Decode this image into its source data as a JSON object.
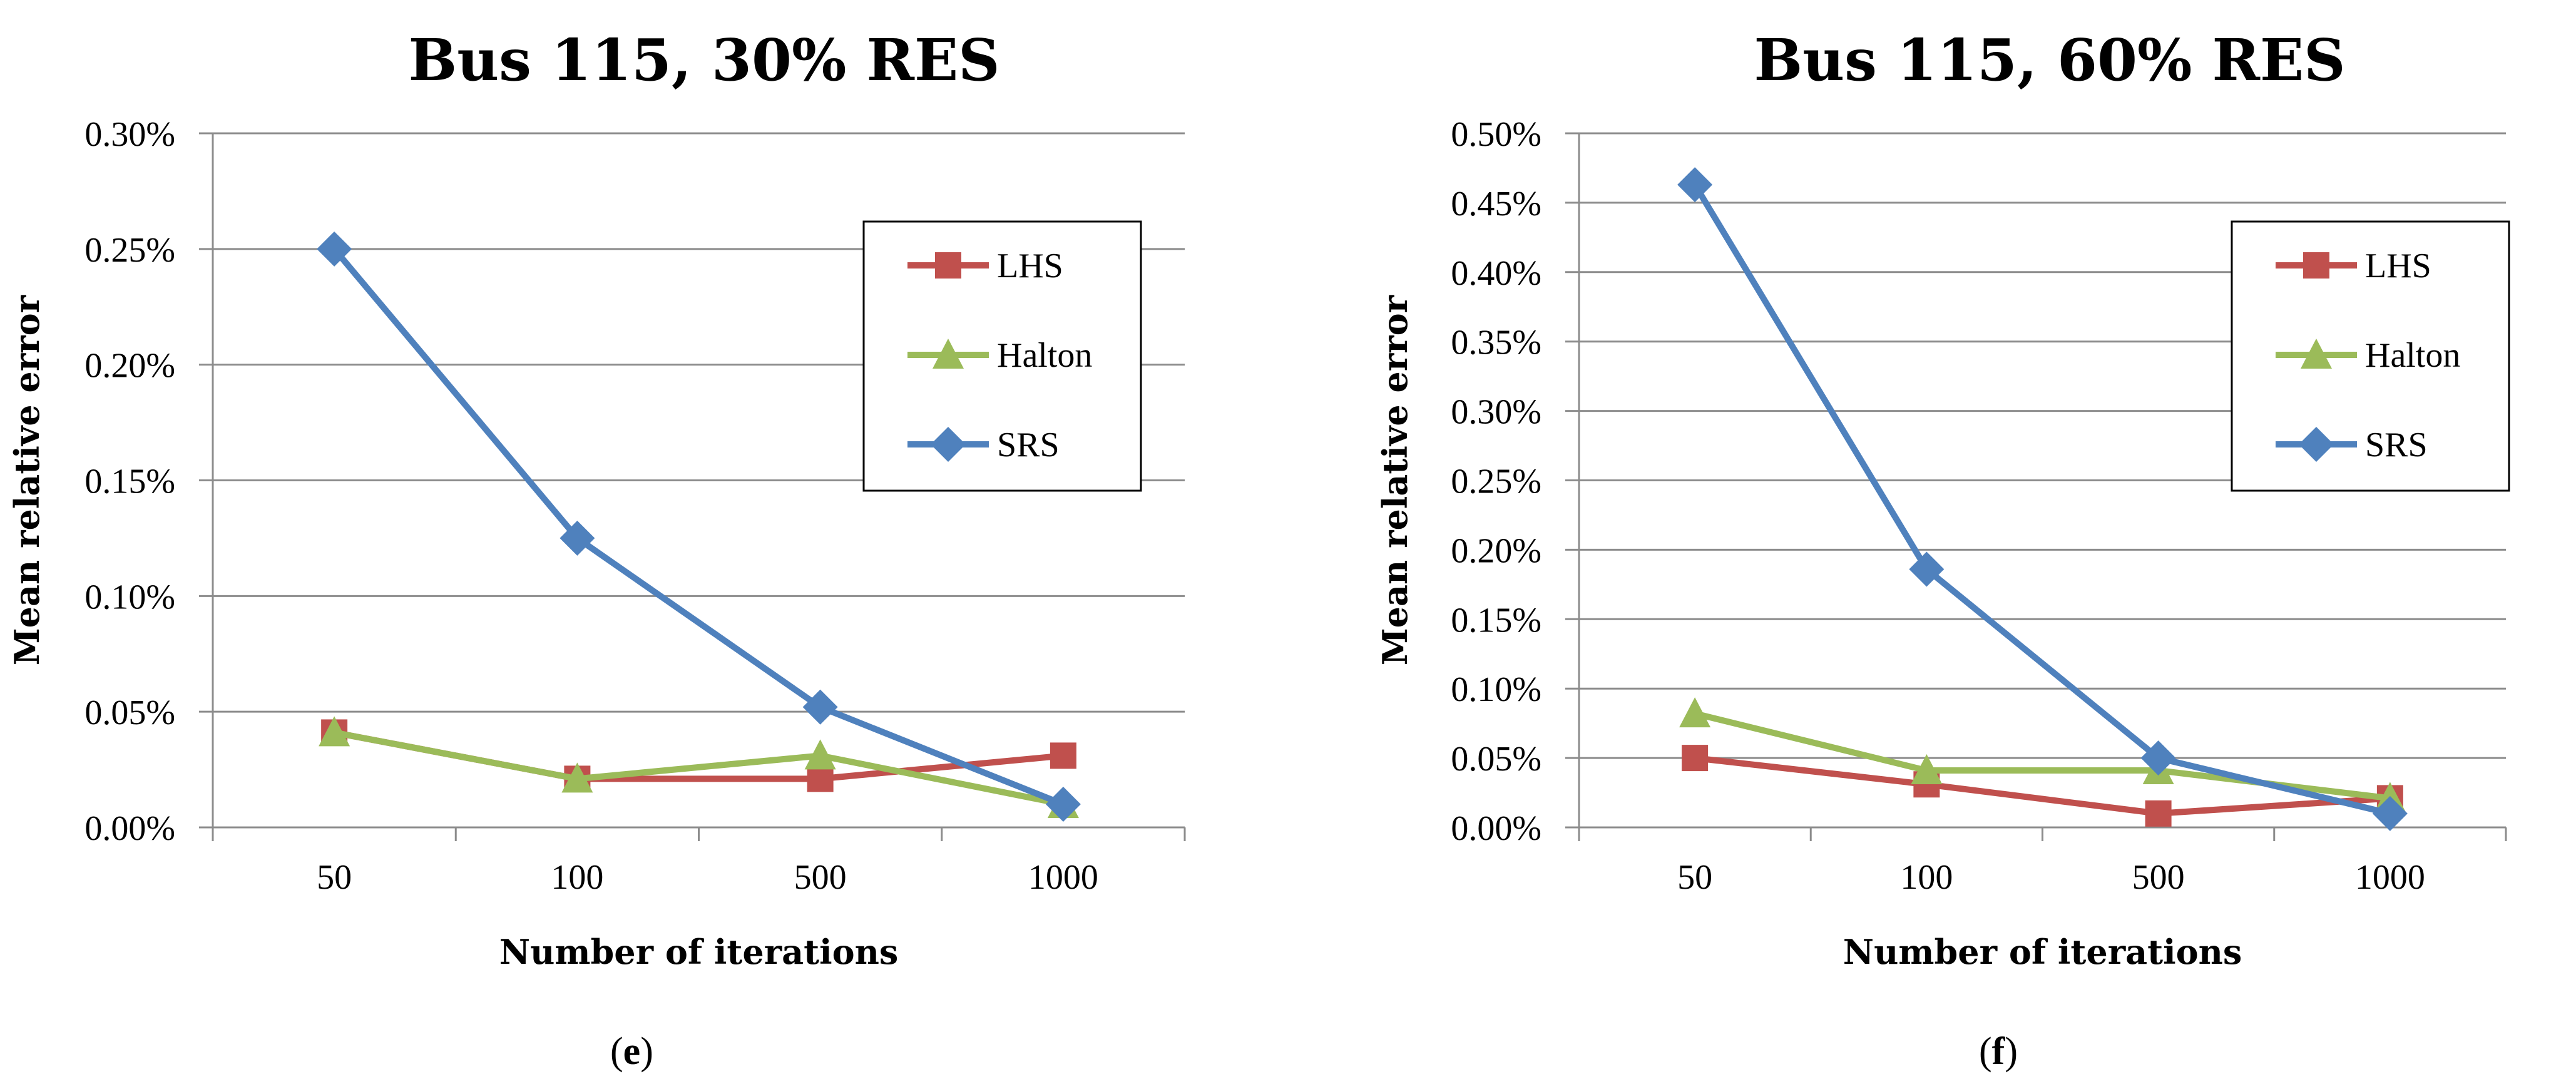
{
  "chart_data": [
    {
      "type": "line",
      "panel_label": "(e)",
      "panel_letter": "e",
      "title": "Bus 115, 30% RES",
      "xlabel": "Number of iterations",
      "ylabel": "Mean relative error",
      "categories": [
        "50",
        "100",
        "500",
        "1000"
      ],
      "ylim": [
        0,
        0.3
      ],
      "yticks": [
        0,
        0.05,
        0.1,
        0.15,
        0.2,
        0.25,
        0.3
      ],
      "ytick_labels": [
        "0.00%",
        "0.05%",
        "0.10%",
        "0.15%",
        "0.20%",
        "0.25%",
        "0.30%"
      ],
      "y_unit": "%",
      "grid": true,
      "legend_position": "top-right",
      "series": [
        {
          "name": "LHS",
          "color": "#c0504d",
          "marker": "square",
          "values": [
            0.041,
            0.021,
            0.021,
            0.031
          ]
        },
        {
          "name": "Halton",
          "color": "#9bbb59",
          "marker": "triangle",
          "values": [
            0.041,
            0.021,
            0.031,
            0.01
          ]
        },
        {
          "name": "SRS",
          "color": "#4f81bd",
          "marker": "diamond",
          "values": [
            0.25,
            0.125,
            0.052,
            0.01
          ]
        }
      ]
    },
    {
      "type": "line",
      "panel_label": "(f)",
      "panel_letter": "f",
      "title": "Bus 115, 60% RES",
      "xlabel": "Number of iterations",
      "ylabel": "Mean relative error",
      "categories": [
        "50",
        "100",
        "500",
        "1000"
      ],
      "ylim": [
        0,
        0.5
      ],
      "yticks": [
        0,
        0.05,
        0.1,
        0.15,
        0.2,
        0.25,
        0.3,
        0.35,
        0.4,
        0.45,
        0.5
      ],
      "ytick_labels": [
        "0.00%",
        "0.05%",
        "0.10%",
        "0.15%",
        "0.20%",
        "0.25%",
        "0.30%",
        "0.35%",
        "0.40%",
        "0.45%",
        "0.50%"
      ],
      "y_unit": "%",
      "grid": true,
      "legend_position": "top-right",
      "series": [
        {
          "name": "LHS",
          "color": "#c0504d",
          "marker": "square",
          "values": [
            0.05,
            0.031,
            0.01,
            0.021
          ]
        },
        {
          "name": "Halton",
          "color": "#9bbb59",
          "marker": "triangle",
          "values": [
            0.082,
            0.041,
            0.041,
            0.021
          ]
        },
        {
          "name": "SRS",
          "color": "#4f81bd",
          "marker": "diamond",
          "values": [
            0.463,
            0.186,
            0.05,
            0.01
          ]
        }
      ]
    }
  ]
}
